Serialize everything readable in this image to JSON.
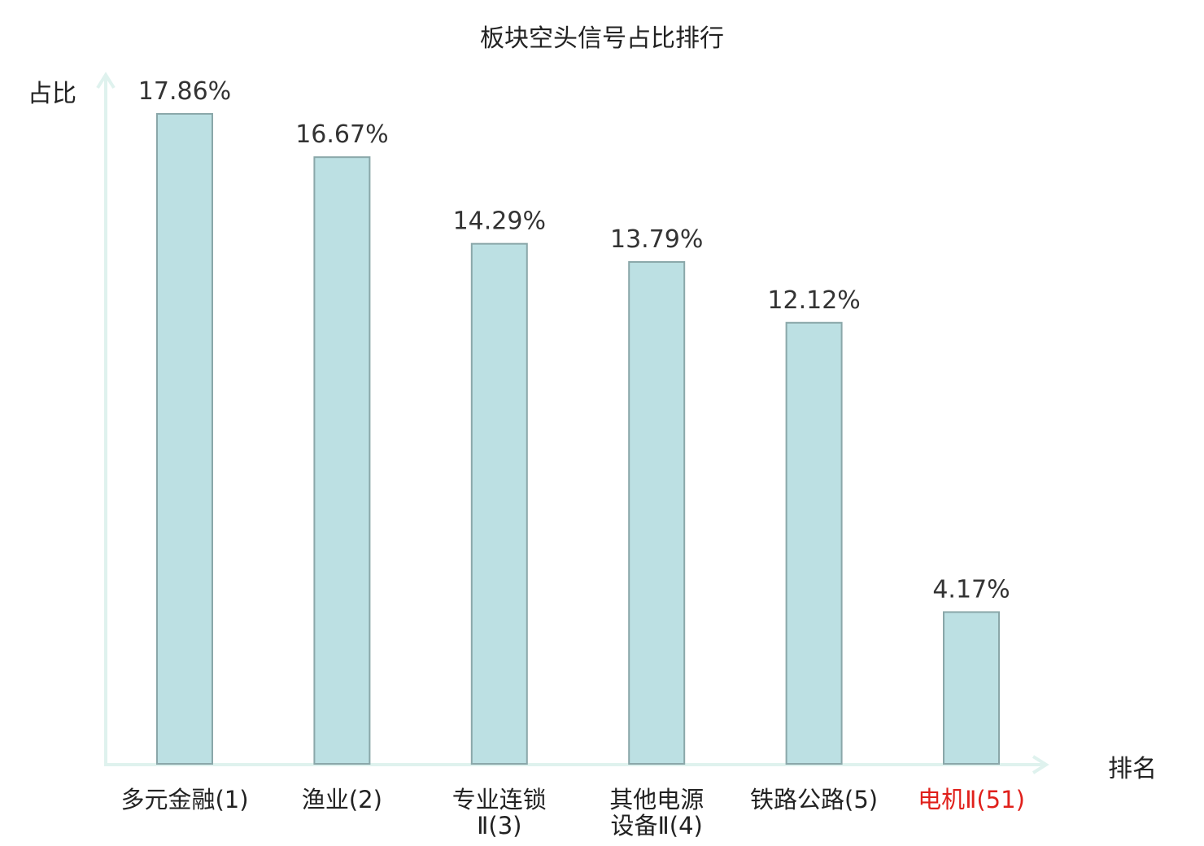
{
  "chart_data": {
    "type": "bar",
    "title": "板块空头信号占比排行",
    "ylabel": "占比",
    "xlabel": "排名",
    "ylim": [
      0,
      19.2
    ],
    "grid": false,
    "categories": [
      [
        "多元金融(1)"
      ],
      [
        "渔业(2)"
      ],
      [
        "专业连锁",
        "Ⅱ(3)"
      ],
      [
        "其他电源",
        "设备Ⅱ(4)"
      ],
      [
        "铁路公路(5)"
      ],
      [
        "电机Ⅱ(51)"
      ]
    ],
    "highlight": [
      false,
      false,
      false,
      false,
      false,
      true
    ],
    "values": [
      17.86,
      16.67,
      14.29,
      13.79,
      12.12,
      4.17
    ],
    "value_labels": [
      "17.86%",
      "16.67%",
      "14.29%",
      "13.79%",
      "12.12%",
      "4.17%"
    ]
  },
  "colors": {
    "bar_fill": "#bce0e3",
    "bar_stroke": "#8aa7a9",
    "axis": "#dff2ee",
    "text": "#222222",
    "highlight": "#e0201b"
  }
}
